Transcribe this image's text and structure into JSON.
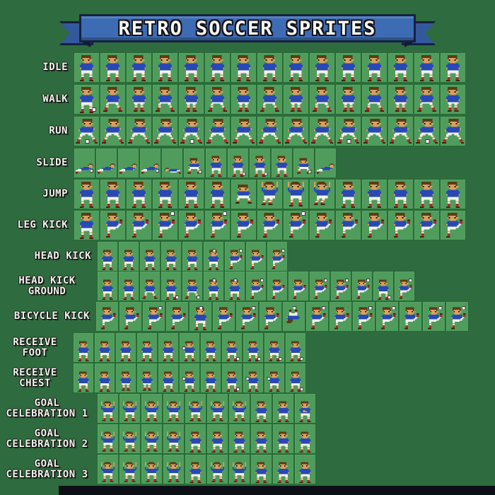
{
  "title": "RETRO SOCCER SPRITES",
  "palette": {
    "background": "#2e6b3e",
    "cell_green": "#4f9c5c",
    "grid_line": "#266c35",
    "banner_blue": "#3e6cb4",
    "banner_outline": "#15223d",
    "label_white": "#f2f2ec",
    "jersey_blue": "#2848b4",
    "shorts_white": "#f2f2ee",
    "socks_red": "#b22a28",
    "skin": "#d9a05f",
    "hair_brown": "#5b3a18",
    "boots_brown": "#43230f",
    "ball_white": "#f7f7f7",
    "bottom_bar": "#0c1016"
  },
  "rows": [
    {
      "label": "IDLE",
      "label_lines": [
        "IDLE"
      ],
      "sprites": [
        "stand",
        "stand",
        "stand",
        "stand",
        "stand",
        "stand",
        "stand",
        "stand",
        "stand",
        "stand",
        "stand",
        "stand",
        "stand",
        "stand",
        "stand"
      ]
    },
    {
      "label": "WALK",
      "label_lines": [
        "WALK"
      ],
      "sprites": [
        "stand_ball",
        "walk",
        "walk2",
        "walk",
        "walk2",
        "walk",
        "walk2",
        "walk",
        "walk2",
        "walk",
        "walk2",
        "walk",
        "walk2",
        "walk",
        "walk2"
      ]
    },
    {
      "label": "RUN",
      "label_lines": [
        "RUN"
      ],
      "sprites": [
        "run_ball",
        "run",
        "run",
        "run",
        "run_ball",
        "run",
        "run",
        "run",
        "run",
        "run",
        "run_ball",
        "run",
        "run",
        "run_ball",
        "run"
      ]
    },
    {
      "label": "SLIDE",
      "label_lines": [
        "SLIDE"
      ],
      "sprites": [
        "slide_ball",
        "slide",
        "slide",
        "slide_ball",
        "lying",
        "crouch_ball",
        "stand",
        "stand_ball",
        "stand_ball",
        "stand",
        "crouch_ball",
        "slide"
      ]
    },
    {
      "label": "JUMP",
      "label_lines": [
        "JUMP"
      ],
      "sprites": [
        "stand",
        "stand",
        "stand",
        "stand",
        "stand",
        "stand",
        "crouch",
        "jump",
        "arms_up",
        "jump",
        "stand",
        "stand",
        "stand",
        "stand",
        "stand"
      ]
    },
    {
      "label": "LEG KICK",
      "label_lines": [
        "LEG KICK"
      ],
      "sprites": [
        "stand",
        "kick",
        "kick",
        "kick_ball",
        "kick",
        "kick_ball",
        "kick",
        "kick",
        "kick_ball",
        "kick",
        "kick",
        "kick",
        "kick",
        "kick",
        "kick"
      ]
    },
    {
      "label": "HEAD KICK",
      "label_lines": [
        "HEAD KICK"
      ],
      "sprites": [
        "stand",
        "stand",
        "stand",
        "stand",
        "stand",
        "head_ball",
        "kick_ball",
        "kick",
        "kick_ball"
      ]
    },
    {
      "label": "HEAD KICK GROUND",
      "label_lines": [
        "HEAD KICK",
        "GROUND"
      ],
      "sprites": [
        "stand",
        "stand",
        "walk",
        "stand_ball",
        "walk_ball",
        "head_ball",
        "head_ball",
        "kick_ball",
        "kick",
        "kick",
        "kick_ball",
        "kick_ball",
        "kick_ball",
        "stand_ball",
        "kick_ball"
      ]
    },
    {
      "label": "BICYCLE KICK",
      "label_lines": [
        "BICYCLE KICK"
      ],
      "sprites": [
        "kick",
        "kick",
        "kick_ball",
        "kick",
        "head_ball",
        "kick",
        "kick_ball",
        "kick",
        "bicycle",
        "kick_ball",
        "kick",
        "kick_ball",
        "kick_ball",
        "kick",
        "kick_ball",
        "kick_ball"
      ]
    },
    {
      "label": "RECEIVE FOOT",
      "label_lines": [
        "RECEIVE",
        "FOOT"
      ],
      "sprites": [
        "stand",
        "stand",
        "stand",
        "stand",
        "stand",
        "chest_ball",
        "stand",
        "stand_ball",
        "stand_ball",
        "stand_ball",
        "stand_ball"
      ]
    },
    {
      "label": "RECEIVE CHEST",
      "label_lines": [
        "RECEIVE",
        "CHEST"
      ],
      "sprites": [
        "stand",
        "stand",
        "walk2",
        "walk2",
        "stand",
        "chest_ball",
        "stand",
        "stand_ball",
        "chest_ball",
        "chest_ball",
        "stand_ball"
      ]
    },
    {
      "label": "GOAL CELEBRATION 1",
      "label_lines": [
        "GOAL",
        "CELEBRATION 1"
      ],
      "sprites": [
        "arms_up",
        "arms_up",
        "arms_up",
        "arms_up",
        "arms_up",
        "arms_up",
        "arms_up",
        "stand",
        "stand",
        "clap"
      ]
    },
    {
      "label": "GOAL CELEBRATION 2",
      "label_lines": [
        "GOAL",
        "CELEBRATION 2"
      ],
      "sprites": [
        "arms_up",
        "arms_up",
        "arms_up",
        "arms_up",
        "stand",
        "stand",
        "stand",
        "stand",
        "stand",
        "stand"
      ]
    },
    {
      "label": "GOAL CELEBRATION 3",
      "label_lines": [
        "GOAL",
        "CELEBRATION 3"
      ],
      "sprites": [
        "arms_up",
        "arms_up",
        "arms_up",
        "arms_up",
        "stand",
        "arms_up",
        "arms_up",
        "stand",
        "stand",
        "stand"
      ]
    }
  ]
}
